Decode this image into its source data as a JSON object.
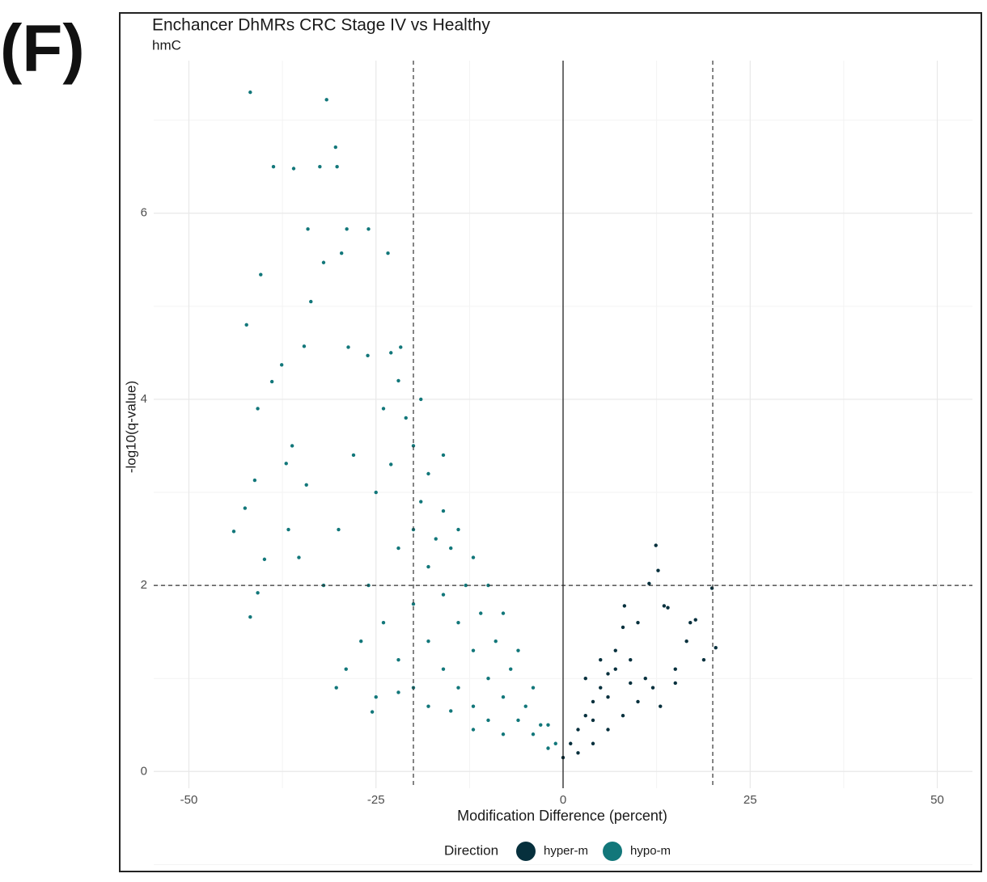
{
  "panel_label": "(F)",
  "chart_data": {
    "type": "scatter",
    "title": "Enchancer DhMRs CRC Stage IV vs Healthy",
    "subtitle": "hmC",
    "x_label": "Modification Difference (percent)",
    "y_label": "-log10(q-value)",
    "xlim": [
      -54.7,
      54.7
    ],
    "ylim": [
      -0.18,
      7.64
    ],
    "xticks": [
      -50,
      -25,
      0,
      25,
      50
    ],
    "yticks": [
      0,
      2,
      4,
      6
    ],
    "grid": true,
    "zero_line_x": 0,
    "threshold_x": [
      -20,
      20
    ],
    "threshold_y": 2,
    "legend_title": "Direction",
    "legend_position": "bottom",
    "series": [
      {
        "name": "hyper-m",
        "color": "#06303d",
        "x": [
          0,
          1,
          2,
          3,
          4,
          5,
          6,
          7,
          2,
          4,
          6,
          8,
          10,
          12,
          3,
          5,
          7,
          9,
          11,
          8,
          8.2,
          12.4,
          12.7,
          11.5,
          13.5,
          14,
          10,
          15,
          16.5,
          17,
          17.7,
          19.9,
          20.4,
          18.8,
          13,
          15,
          6,
          4,
          9
        ],
        "values": [
          0.15,
          0.3,
          0.45,
          0.6,
          0.75,
          0.9,
          1.05,
          1.1,
          0.2,
          0.3,
          0.45,
          0.6,
          0.75,
          0.9,
          1.0,
          1.2,
          1.3,
          1.2,
          1.0,
          1.55,
          1.78,
          2.43,
          2.16,
          2.02,
          1.78,
          1.76,
          1.6,
          1.1,
          1.4,
          1.6,
          1.63,
          1.97,
          1.33,
          1.2,
          0.7,
          0.95,
          0.8,
          0.55,
          0.95
        ]
      },
      {
        "name": "hypo-m",
        "color": "#12777a",
        "x": [
          -41.8,
          -31.6,
          -30.4,
          -38.7,
          -36.0,
          -32.5,
          -30.2,
          -34.1,
          -28.9,
          -26.0,
          -40.4,
          -32.0,
          -29.6,
          -23.4,
          -42.3,
          -33.7,
          -40.8,
          -38.9,
          -37.6,
          -41.2,
          -42.5,
          -44.0,
          -39.9,
          -40.8,
          -41.8,
          -30.3,
          -36.7,
          -37.0,
          -34.6,
          -28.7,
          -26.1,
          -21.7,
          -36.2,
          -34.3,
          -35.3,
          -25.5,
          -20,
          -18,
          -16,
          -14,
          -12,
          -10,
          -8,
          -6,
          -4,
          -2,
          -1,
          -22,
          -24,
          -20,
          -18,
          -16,
          -14,
          -12,
          -10,
          -8,
          -6,
          -4,
          -2,
          -25,
          -22,
          -20,
          -18,
          -16,
          -14,
          -12,
          -10,
          -26,
          -24,
          -22,
          -20,
          -18,
          -28,
          -30,
          -27,
          -32,
          -23,
          -19,
          -15,
          -13,
          -11,
          -9,
          -7,
          -5,
          -3,
          -17,
          -21,
          -19,
          -23,
          -16,
          -15,
          -12,
          -8,
          -25,
          -29,
          -22
        ],
        "values": [
          7.3,
          7.22,
          6.71,
          6.5,
          6.48,
          6.5,
          6.5,
          5.83,
          5.83,
          5.83,
          5.34,
          5.47,
          5.57,
          5.57,
          4.8,
          5.05,
          3.9,
          4.19,
          4.37,
          3.13,
          2.83,
          2.58,
          2.28,
          1.92,
          1.66,
          0.9,
          2.6,
          3.31,
          4.57,
          4.56,
          4.47,
          4.56,
          3.5,
          3.08,
          2.3,
          0.64,
          3.5,
          3.2,
          2.8,
          2.6,
          2.3,
          2.0,
          1.7,
          1.3,
          0.9,
          0.5,
          0.3,
          4.2,
          3.9,
          2.6,
          2.2,
          1.9,
          1.6,
          1.3,
          1.0,
          0.8,
          0.55,
          0.4,
          0.25,
          3.0,
          2.4,
          1.8,
          1.4,
          1.1,
          0.9,
          0.7,
          0.55,
          2.0,
          1.6,
          1.2,
          0.9,
          0.7,
          3.4,
          2.6,
          1.4,
          2.0,
          3.3,
          2.9,
          2.4,
          2.0,
          1.7,
          1.4,
          1.1,
          0.7,
          0.5,
          2.5,
          3.8,
          4.0,
          4.5,
          3.4,
          0.65,
          0.45,
          0.4,
          0.8,
          1.1,
          0.85
        ]
      }
    ]
  }
}
